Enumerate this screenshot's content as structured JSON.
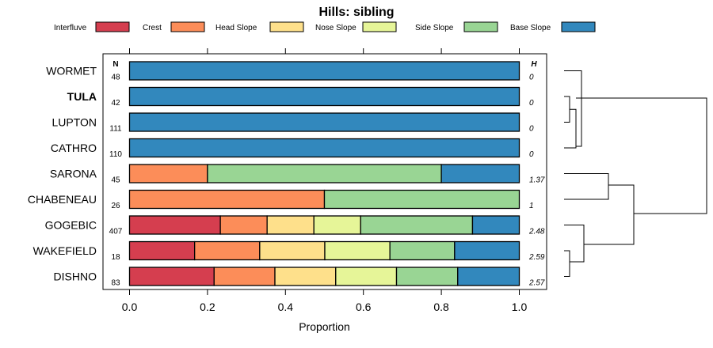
{
  "chart_data": {
    "type": "bar",
    "orientation": "horizontal",
    "stacked": true,
    "title": "Hills: sibling",
    "xlabel": "Proportion",
    "xlim": [
      0,
      1
    ],
    "xticks": [
      "0.0",
      "0.2",
      "0.4",
      "0.6",
      "0.8",
      "1.0"
    ],
    "n_header": "N",
    "h_header": "H",
    "legend_position": "top",
    "categories": [
      "WORMET",
      "TULA",
      "LUPTON",
      "CATHRO",
      "SARONA",
      "CHABENEAU",
      "GOGEBIC",
      "WAKEFIELD",
      "DISHNO"
    ],
    "highlight": "TULA",
    "n": [
      "48",
      "42",
      "111",
      "110",
      "45",
      "26",
      "407",
      "18",
      "83"
    ],
    "h": [
      "0",
      "0",
      "0",
      "0",
      "1.37",
      "1",
      "2.48",
      "2.59",
      "2.57"
    ],
    "series": [
      {
        "name": "Interfluve",
        "color": "#d53e4f",
        "values": [
          0,
          0,
          0,
          0,
          0,
          0,
          0.233,
          0.167,
          0.217
        ]
      },
      {
        "name": "Crest",
        "color": "#fc8d59",
        "values": [
          0,
          0,
          0,
          0,
          0.2,
          0.5,
          0.12,
          0.167,
          0.156
        ]
      },
      {
        "name": "Head Slope",
        "color": "#fee08b",
        "values": [
          0,
          0,
          0,
          0,
          0,
          0,
          0.12,
          0.167,
          0.156
        ]
      },
      {
        "name": "Nose Slope",
        "color": "#e6f598",
        "values": [
          0,
          0,
          0,
          0,
          0,
          0,
          0.12,
          0.167,
          0.156
        ]
      },
      {
        "name": "Side Slope",
        "color": "#99d594",
        "values": [
          0,
          0,
          0,
          0,
          0.6,
          0.5,
          0.287,
          0.166,
          0.157
        ]
      },
      {
        "name": "Base Slope",
        "color": "#3288bd",
        "values": [
          1,
          1,
          1,
          1,
          0.2,
          0,
          0.12,
          0.166,
          0.158
        ]
      }
    ]
  }
}
